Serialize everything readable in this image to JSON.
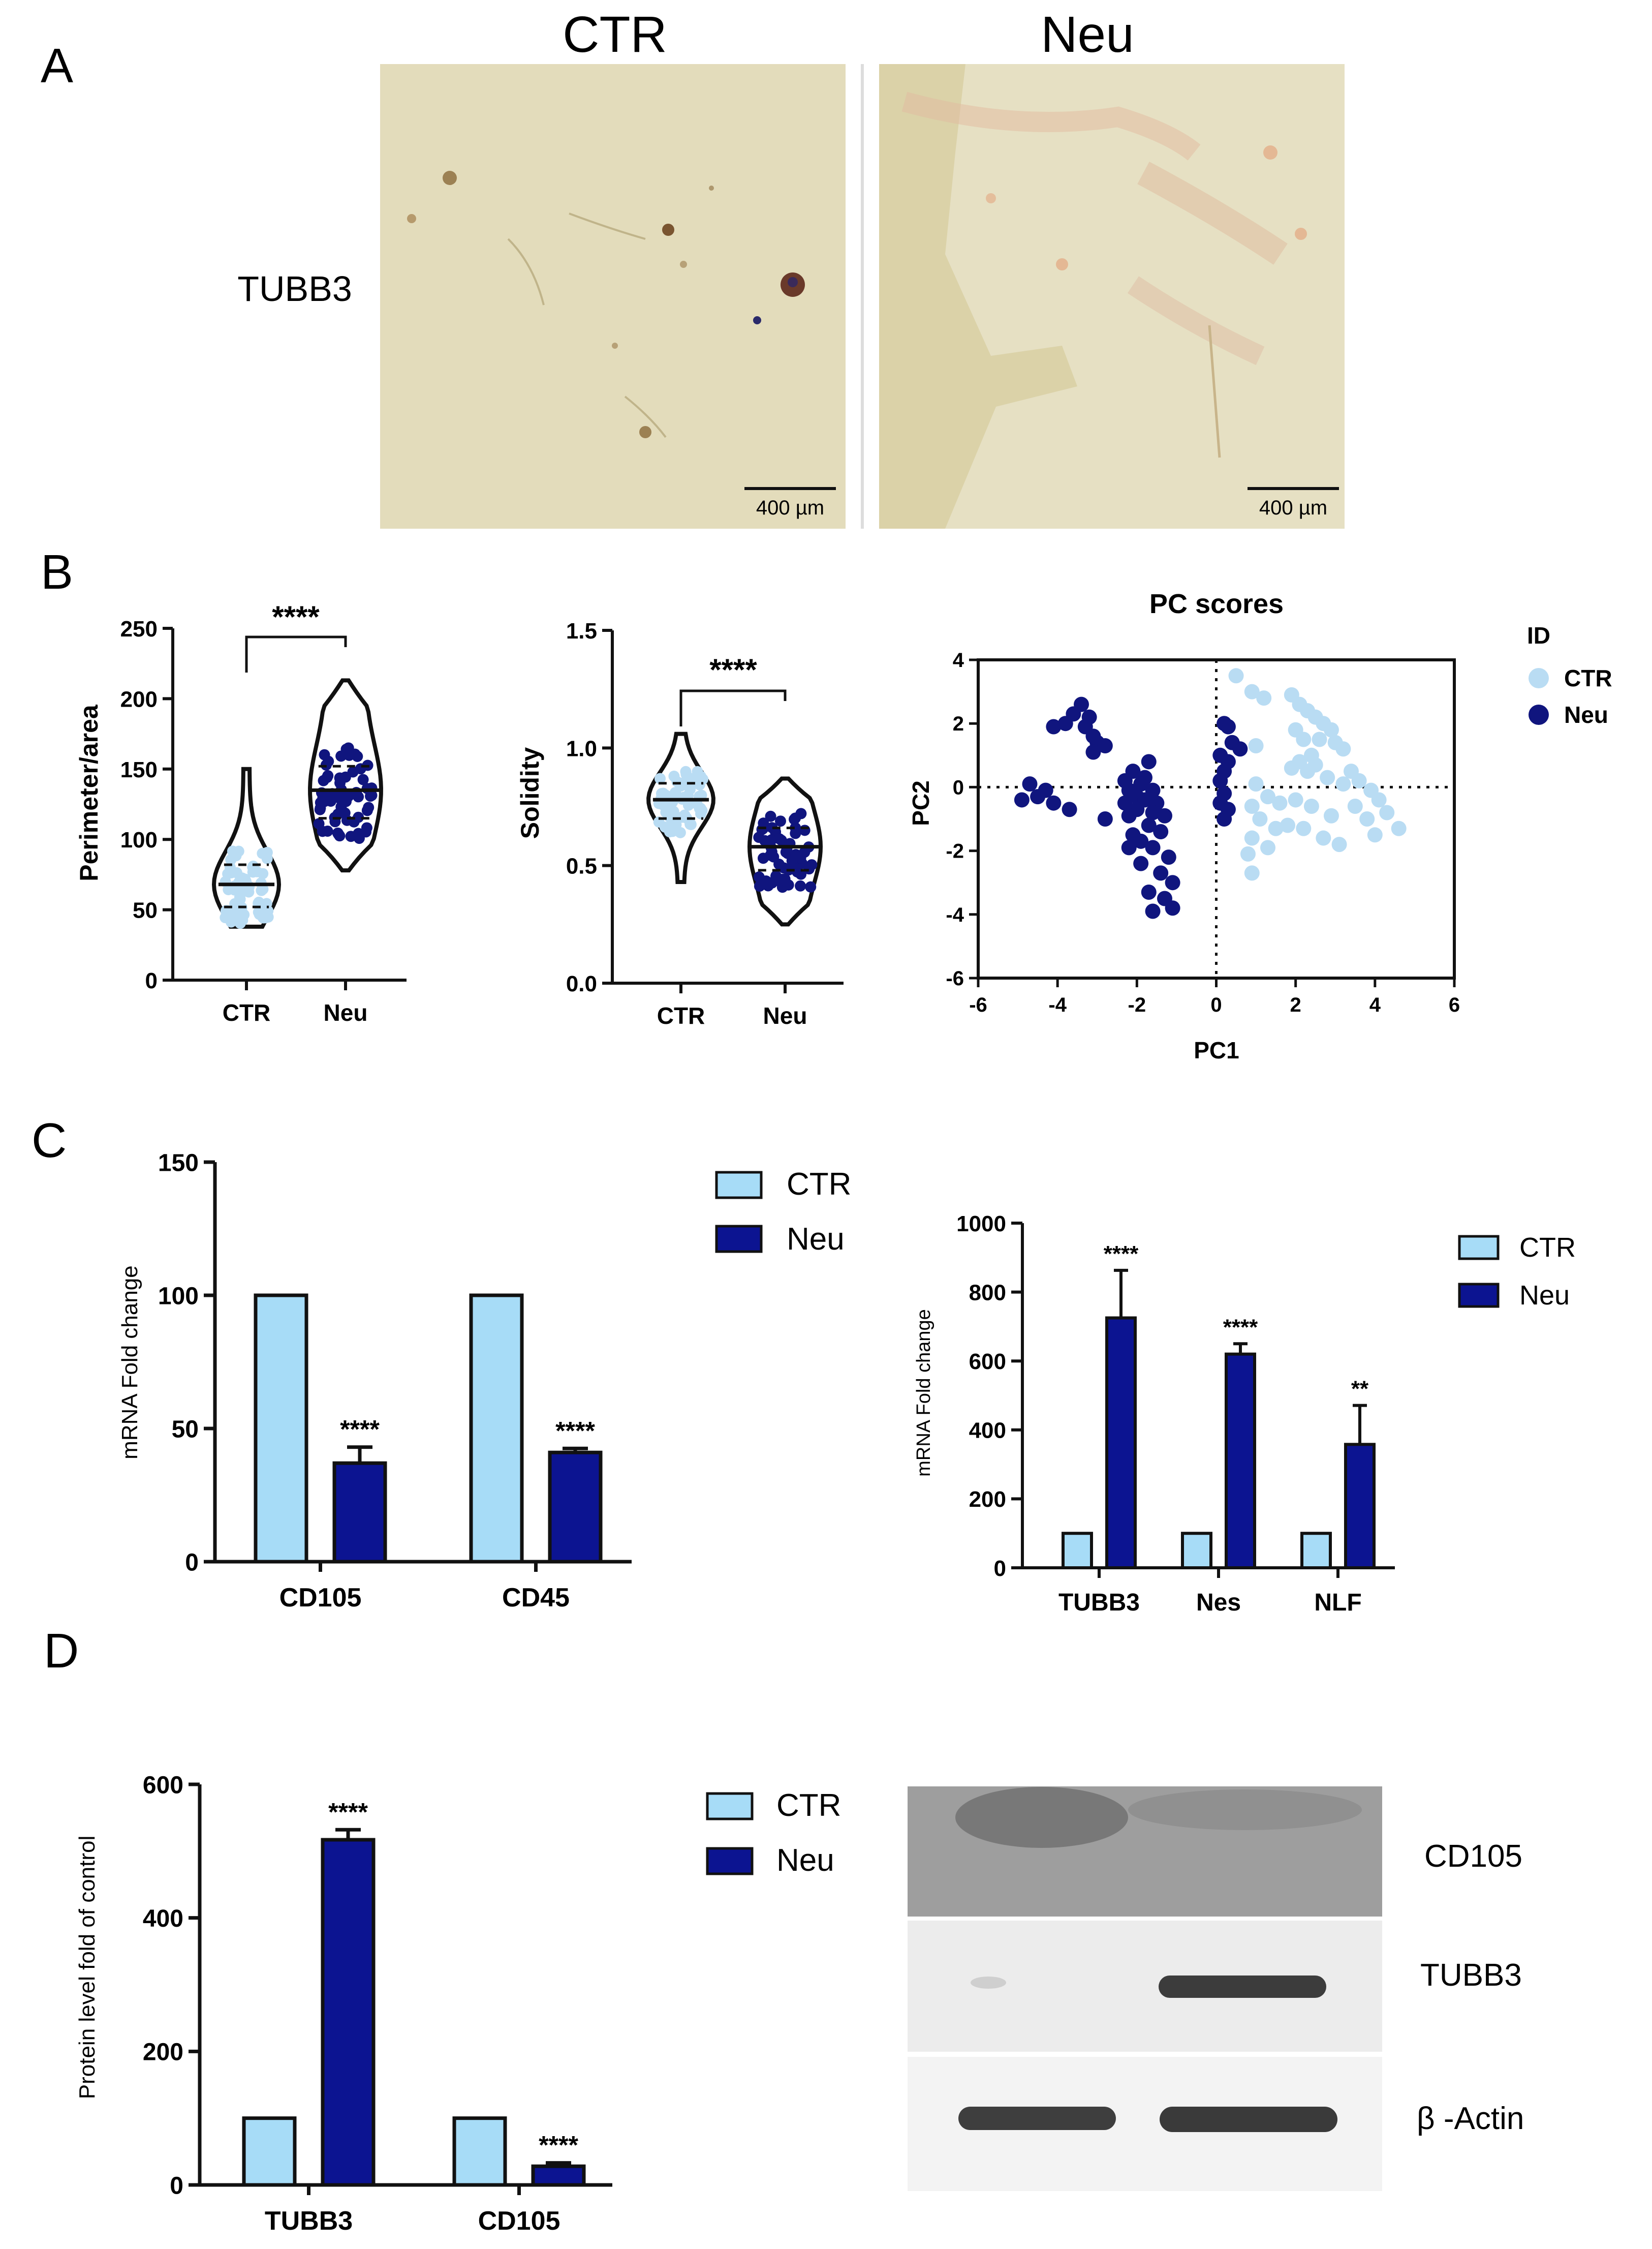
{
  "panels": {
    "A": {
      "letter": "A",
      "columns": [
        "CTR",
        "Neu"
      ],
      "row_label": "TUBB3",
      "scale_bar": "400 µm"
    },
    "B": {
      "letter": "B"
    },
    "C": {
      "letter": "C"
    },
    "D": {
      "letter": "D",
      "blot_labels": [
        "CD105",
        "TUBB3",
        "β -Actin"
      ]
    }
  },
  "colors": {
    "ctr_light": "#a7dcf7",
    "ctr_point": "#b9dcf3",
    "neu_dark": "#0c1491",
    "neu_point": "#10157e",
    "micro_bg": "#e8e2c4"
  },
  "chart_data": [
    {
      "id": "B1",
      "type": "violin",
      "ylabel": "Perimeter/area",
      "categories": [
        "CTR",
        "Neu"
      ],
      "ylim": [
        0,
        250
      ],
      "yticks": [
        0,
        50,
        100,
        150,
        200,
        250
      ],
      "medians": [
        68,
        135
      ],
      "quartiles": [
        [
          52,
          82
        ],
        [
          115,
          152
        ]
      ],
      "ranges": [
        [
          38,
          150
        ],
        [
          78,
          213
        ]
      ],
      "significance": "****"
    },
    {
      "id": "B2",
      "type": "violin",
      "ylabel": "Solidity",
      "categories": [
        "CTR",
        "Neu"
      ],
      "ylim": [
        0.0,
        1.5
      ],
      "yticks": [
        "0.0",
        "0.5",
        "1.0",
        "1.5"
      ],
      "medians": [
        0.78,
        0.58
      ],
      "quartiles": [
        [
          0.7,
          0.85
        ],
        [
          0.48,
          0.66
        ]
      ],
      "ranges": [
        [
          0.43,
          1.06
        ],
        [
          0.25,
          0.87
        ]
      ],
      "significance": "****"
    },
    {
      "id": "B3",
      "type": "scatter",
      "title": "PC scores",
      "xlabel": "PC1",
      "ylabel": "PC2",
      "xlim": [
        -6,
        6
      ],
      "ylim": [
        -6,
        4
      ],
      "xticks": [
        -6,
        -4,
        -2,
        0,
        2,
        4,
        6
      ],
      "yticks": [
        -6,
        -4,
        -2,
        0,
        2,
        4
      ],
      "legend_title": "ID",
      "series": [
        {
          "name": "CTR",
          "points": [
            [
              0.5,
              3.5
            ],
            [
              0.9,
              3.0
            ],
            [
              1.2,
              2.8
            ],
            [
              1.9,
              2.9
            ],
            [
              2.1,
              2.6
            ],
            [
              2.3,
              2.4
            ],
            [
              2.5,
              2.2
            ],
            [
              2.7,
              2.0
            ],
            [
              2.9,
              1.8
            ],
            [
              2.0,
              1.8
            ],
            [
              2.2,
              1.5
            ],
            [
              2.6,
              1.5
            ],
            [
              3.0,
              1.4
            ],
            [
              3.2,
              1.2
            ],
            [
              1.0,
              1.3
            ],
            [
              2.4,
              1.0
            ],
            [
              2.1,
              0.8
            ],
            [
              2.5,
              0.7
            ],
            [
              2.3,
              0.5
            ],
            [
              1.9,
              0.6
            ],
            [
              2.8,
              0.3
            ],
            [
              3.4,
              0.5
            ],
            [
              3.6,
              0.2
            ],
            [
              3.2,
              0.1
            ],
            [
              3.9,
              -0.1
            ],
            [
              4.1,
              -0.4
            ],
            [
              3.5,
              -0.6
            ],
            [
              4.3,
              -0.8
            ],
            [
              4.6,
              -1.3
            ],
            [
              1.0,
              0.1
            ],
            [
              1.3,
              -0.3
            ],
            [
              0.9,
              -0.6
            ],
            [
              1.6,
              -0.5
            ],
            [
              2.0,
              -0.4
            ],
            [
              2.4,
              -0.6
            ],
            [
              2.9,
              -0.9
            ],
            [
              1.1,
              -1.0
            ],
            [
              1.5,
              -1.3
            ],
            [
              1.8,
              -1.2
            ],
            [
              2.2,
              -1.3
            ],
            [
              2.7,
              -1.6
            ],
            [
              3.1,
              -1.8
            ],
            [
              0.9,
              -1.6
            ],
            [
              1.3,
              -1.9
            ],
            [
              0.8,
              -2.1
            ],
            [
              0.9,
              -2.7
            ],
            [
              3.8,
              -1.0
            ],
            [
              4.0,
              -1.5
            ]
          ]
        },
        {
          "name": "Neu",
          "points": [
            [
              -3.4,
              2.6
            ],
            [
              -3.6,
              2.3
            ],
            [
              -3.2,
              2.2
            ],
            [
              -3.8,
              2.0
            ],
            [
              -3.3,
              1.9
            ],
            [
              -4.1,
              1.9
            ],
            [
              -3.1,
              1.6
            ],
            [
              -3.0,
              1.4
            ],
            [
              -2.8,
              1.3
            ],
            [
              -3.1,
              1.1
            ],
            [
              0.2,
              2.0
            ],
            [
              0.3,
              1.9
            ],
            [
              0.4,
              1.4
            ],
            [
              0.1,
              1.0
            ],
            [
              0.6,
              1.2
            ],
            [
              0.3,
              0.8
            ],
            [
              0.2,
              0.5
            ],
            [
              0.1,
              0.2
            ],
            [
              0.2,
              -0.2
            ],
            [
              0.1,
              -0.5
            ],
            [
              0.3,
              -0.7
            ],
            [
              0.2,
              -1.0
            ],
            [
              -4.7,
              0.1
            ],
            [
              -4.3,
              -0.1
            ],
            [
              -4.9,
              -0.4
            ],
            [
              -4.5,
              -0.3
            ],
            [
              -4.1,
              -0.5
            ],
            [
              -3.7,
              -0.7
            ],
            [
              -1.7,
              0.8
            ],
            [
              -2.1,
              0.5
            ],
            [
              -1.8,
              0.3
            ],
            [
              -2.3,
              0.2
            ],
            [
              -1.9,
              0.1
            ],
            [
              -2.2,
              -0.1
            ],
            [
              -1.6,
              -0.1
            ],
            [
              -2.0,
              -0.3
            ],
            [
              -1.8,
              -0.4
            ],
            [
              -2.3,
              -0.5
            ],
            [
              -1.5,
              -0.5
            ],
            [
              -2.0,
              -0.7
            ],
            [
              -1.6,
              -0.8
            ],
            [
              -1.3,
              -0.9
            ],
            [
              -2.2,
              -0.9
            ],
            [
              -2.8,
              -1.0
            ],
            [
              -1.7,
              -1.2
            ],
            [
              -1.4,
              -1.4
            ],
            [
              -2.1,
              -1.5
            ],
            [
              -1.9,
              -1.7
            ],
            [
              -1.6,
              -1.9
            ],
            [
              -1.2,
              -2.2
            ],
            [
              -1.4,
              -2.7
            ],
            [
              -1.1,
              -3.0
            ],
            [
              -1.7,
              -3.3
            ],
            [
              -1.3,
              -3.5
            ],
            [
              -1.1,
              -3.8
            ],
            [
              -1.6,
              -3.9
            ],
            [
              -2.2,
              -1.9
            ],
            [
              -1.9,
              -2.4
            ]
          ]
        }
      ]
    },
    {
      "id": "C1",
      "type": "bar",
      "ylabel": "mRNA Fold change",
      "categories": [
        "CD105",
        "CD45"
      ],
      "ylim": [
        0,
        150
      ],
      "yticks": [
        0,
        50,
        100,
        150
      ],
      "series": [
        {
          "name": "CTR",
          "values": [
            100,
            100
          ],
          "errors": [
            0,
            0
          ]
        },
        {
          "name": "Neu",
          "values": [
            37,
            41
          ],
          "errors": [
            6,
            1.5
          ]
        }
      ],
      "annotations": [
        "****",
        "****"
      ]
    },
    {
      "id": "C2",
      "type": "bar",
      "ylabel": "mRNA Fold change",
      "categories": [
        "TUBB3",
        "Nes",
        "NLF"
      ],
      "ylim": [
        0,
        1000
      ],
      "yticks": [
        0,
        200,
        400,
        600,
        800,
        1000
      ],
      "series": [
        {
          "name": "CTR",
          "values": [
            100,
            100,
            100
          ],
          "errors": [
            0,
            0,
            0
          ]
        },
        {
          "name": "Neu",
          "values": [
            725,
            620,
            358
          ],
          "errors": [
            138,
            30,
            113
          ]
        }
      ],
      "annotations": [
        "****",
        "****",
        "**"
      ]
    },
    {
      "id": "D1",
      "type": "bar",
      "ylabel": "Protein level fold of control",
      "categories": [
        "TUBB3",
        "CD105"
      ],
      "ylim": [
        0,
        600
      ],
      "yticks": [
        0,
        200,
        400,
        600
      ],
      "series": [
        {
          "name": "CTR",
          "values": [
            100,
            100
          ],
          "errors": [
            0,
            0
          ]
        },
        {
          "name": "Neu",
          "values": [
            517,
            28
          ],
          "errors": [
            15,
            5
          ]
        }
      ],
      "annotations": [
        "****",
        "****"
      ]
    }
  ]
}
